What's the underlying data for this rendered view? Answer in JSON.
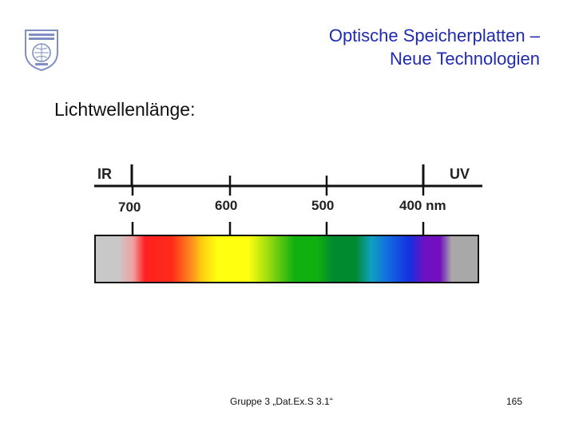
{
  "slide": {
    "title_line1": "Optische Speicherplatten –",
    "title_line2": "Neue Technologien",
    "subtitle": "Lichtwellenlänge:",
    "footer": "Gruppe 3 „Dat.Ex.S 3.1“",
    "page_number": "165"
  },
  "scale": {
    "left_label": "IR",
    "right_label": "UV",
    "ticks": [
      {
        "label": "700"
      },
      {
        "label": "600"
      },
      {
        "label": "500"
      },
      {
        "label": "400 nm"
      }
    ]
  },
  "colors": {
    "title": "#1f2bb0",
    "logo": "#7f8fc4",
    "ir": "#c8c8c8",
    "red": "#ff2020",
    "orange": "#ff8a20",
    "yellow": "#ffff10",
    "yellowgreen": "#a0dc10",
    "green": "#10b010",
    "darkgreen": "#008a30",
    "cyan": "#10a0c0",
    "blue": "#1430e0",
    "violet": "#7010c0",
    "uv": "#a8a8a8"
  }
}
